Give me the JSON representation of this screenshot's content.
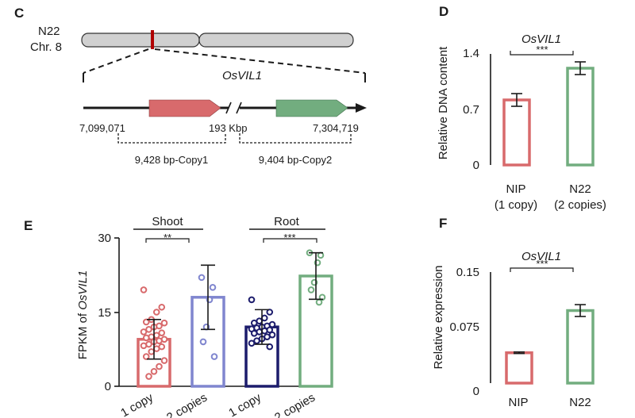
{
  "panel_c": {
    "label": "C",
    "strain": "N22",
    "chromosome": "Chr. 8",
    "gene": "OsVIL1",
    "start_coord": "7,099,071",
    "gap_label": "193 Kbp",
    "end_coord": "7,304,719",
    "copy1_label": "9,428 bp-Copy1",
    "copy2_label": "9,404 bp-Copy2",
    "colors": {
      "copy1": "#d86a6c",
      "copy2": "#72ad7f",
      "chromosome": "#d0d0d0",
      "marker": "#b00000"
    }
  },
  "panel_d": {
    "label": "D",
    "title": "OsVIL1",
    "ylabel": "Relative DNA content",
    "sig": "***",
    "categories": [
      {
        "name": "NIP",
        "sub": "(1 copy)"
      },
      {
        "name": "N22",
        "sub": "(2 copies)"
      }
    ],
    "yticks": [
      "0",
      "0.7",
      "1.4"
    ]
  },
  "panel_e": {
    "label": "E",
    "group1": "Shoot",
    "group2": "Root",
    "ylabel_prefix": "FPKM of ",
    "ylabel_gene": "OsVIL1",
    "sig1": "**",
    "sig2": "***",
    "xlabels": [
      "1 copy",
      "2 copies",
      "1 copy",
      "2 copies"
    ],
    "yticks": [
      "0",
      "15",
      "30"
    ]
  },
  "panel_f": {
    "label": "F",
    "title": "OsVIL1",
    "ylabel": "Relative expression",
    "sig": "***",
    "categories": [
      "NIP",
      "N22"
    ],
    "yticks": [
      "0",
      "0.075",
      "0.15"
    ]
  },
  "chart_data": [
    {
      "type": "bar",
      "panel": "D",
      "title": "OsVIL1",
      "ylabel": "Relative DNA content",
      "categories": [
        "NIP (1 copy)",
        "N22 (2 copies)"
      ],
      "values": [
        0.82,
        1.22
      ],
      "errors": [
        0.08,
        0.08
      ],
      "ylim": [
        0,
        1.4
      ],
      "colors": [
        "#d86a6c",
        "#72ad7f"
      ]
    },
    {
      "type": "bar",
      "panel": "E",
      "ylabel": "FPKM of OsVIL1",
      "categories": [
        "1 copy",
        "2 copies",
        "1 copy",
        "2 copies"
      ],
      "groups": [
        "Shoot",
        "Shoot",
        "Root",
        "Root"
      ],
      "values": [
        9.5,
        18,
        12,
        22.3
      ],
      "errors": [
        4,
        6.5,
        3.5,
        4.7
      ],
      "ylim": [
        0,
        30
      ],
      "colors": [
        "#d86a6c",
        "#8086cf",
        "#1c1c6c",
        "#72ad7f"
      ],
      "points": [
        [
          19.5,
          16,
          15,
          13.5,
          13,
          12.8,
          12.2,
          12,
          11.5,
          11,
          10.8,
          10.3,
          10,
          9.8,
          9.5,
          9.2,
          9,
          8.5,
          8.2,
          8,
          7.6,
          7,
          6,
          5.2,
          4,
          3,
          2
        ],
        [
          22,
          20,
          17.5,
          12,
          9,
          6
        ],
        [
          17.5,
          15,
          13.8,
          13.2,
          12.8,
          12.5,
          12.2,
          12,
          11.8,
          11.6,
          11.4,
          11.2,
          11,
          10.7,
          10.4,
          10,
          9.6,
          9.2,
          8.7,
          8
        ],
        [
          27,
          26.5,
          25,
          21,
          19.5,
          18,
          17
        ]
      ]
    },
    {
      "type": "bar",
      "panel": "F",
      "title": "OsVIL1",
      "ylabel": "Relative expression",
      "categories": [
        "NIP",
        "N22"
      ],
      "values": [
        0.041,
        0.098
      ],
      "errors": [
        0.001,
        0.008
      ],
      "ylim": [
        0,
        0.15
      ],
      "colors": [
        "#d86a6c",
        "#72ad7f"
      ]
    }
  ]
}
